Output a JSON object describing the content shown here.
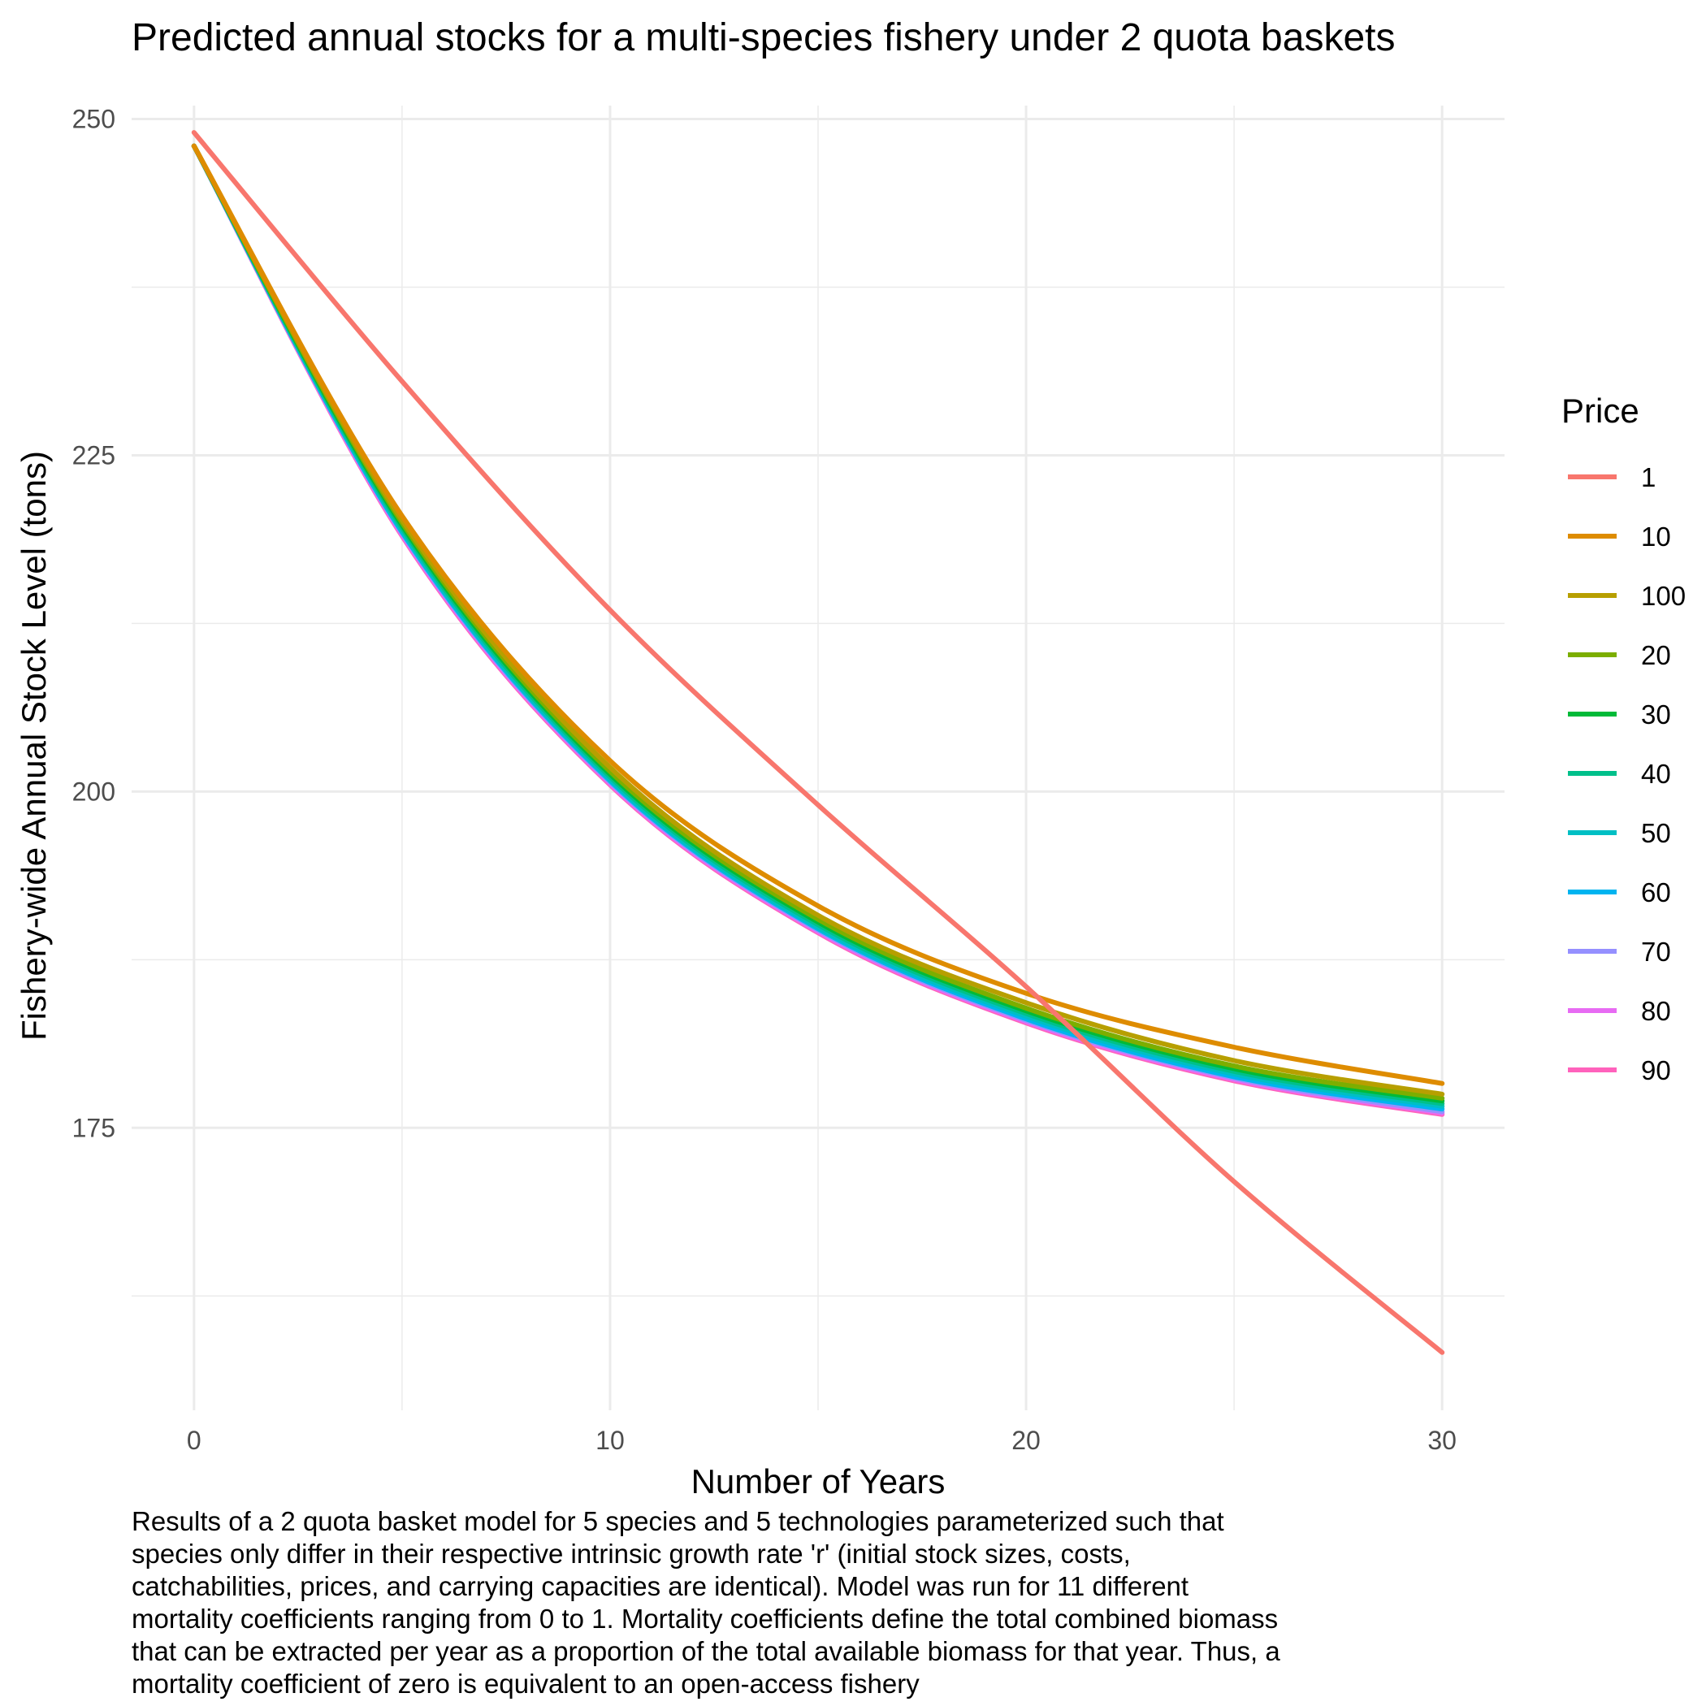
{
  "chart_data": {
    "type": "line",
    "title": "Predicted annual stocks for a multi-species fishery under 2 quota baskets",
    "xlabel": "Number of Years",
    "ylabel": "Fishery-wide Annual Stock Level (tons)",
    "xlim": [
      -1.5,
      31.5
    ],
    "ylim": [
      154,
      251
    ],
    "x_ticks": [
      0,
      10,
      20,
      30
    ],
    "y_ticks": [
      175,
      200,
      225,
      250
    ],
    "grid": true,
    "legend": {
      "title": "Price",
      "position": "right"
    },
    "caption": "Results of a 2 quota basket model for 5 species and 5 technologies parameterized such that\nspecies only differ in their respective intrinsic growth rate 'r' (initial stock sizes, costs,\ncatchabilities, prices, and carrying capacities are identical). Model was run for 11 different\nmortality coefficients ranging from 0 to 1. Mortality coefficients define the total combined biomass\nthat can be extracted per year as a proportion of the total available biomass for that year. Thus, a\nmortality coefficient of zero is equivalent to an open-access fishery",
    "x": [
      0,
      5,
      10,
      15,
      20,
      25,
      30
    ],
    "series": [
      {
        "name": "1",
        "color": "#F8766D",
        "values": [
          249,
          230.5,
          213.5,
          199,
          185.5,
          171,
          158.3
        ]
      },
      {
        "name": "10",
        "color": "#DE8C00",
        "values": [
          248,
          220.5,
          202.3,
          191.5,
          185,
          181,
          178.3
        ]
      },
      {
        "name": "100",
        "color": "#B79F00",
        "values": [
          248,
          220.2,
          201.8,
          190.8,
          184.3,
          180,
          177.5
        ]
      },
      {
        "name": "20",
        "color": "#7CAE00",
        "values": [
          248,
          220,
          201.5,
          190.5,
          183.9,
          179.6,
          177.2
        ]
      },
      {
        "name": "30",
        "color": "#00BA38",
        "values": [
          248,
          219.8,
          201.3,
          190.3,
          183.7,
          179.4,
          177
        ]
      },
      {
        "name": "40",
        "color": "#00C08B",
        "values": [
          248,
          219.6,
          201.1,
          190.1,
          183.5,
          179.2,
          176.8
        ]
      },
      {
        "name": "50",
        "color": "#00BFC4",
        "values": [
          248,
          219.4,
          200.9,
          189.9,
          183.3,
          179,
          176.6
        ]
      },
      {
        "name": "60",
        "color": "#00B4F0",
        "values": [
          248,
          219.3,
          200.8,
          189.8,
          183.1,
          178.8,
          176.4
        ]
      },
      {
        "name": "70",
        "color": "#9590FF",
        "values": [
          248,
          219.2,
          200.7,
          189.7,
          183,
          178.7,
          176.2
        ]
      },
      {
        "name": "80",
        "color": "#E76BF3",
        "values": [
          248,
          219.1,
          200.6,
          189.6,
          182.9,
          178.6,
          176.1
        ]
      },
      {
        "name": "90",
        "color": "#FF62BC",
        "values": [
          248,
          219,
          200.5,
          189.5,
          182.8,
          178.5,
          176
        ]
      }
    ]
  }
}
